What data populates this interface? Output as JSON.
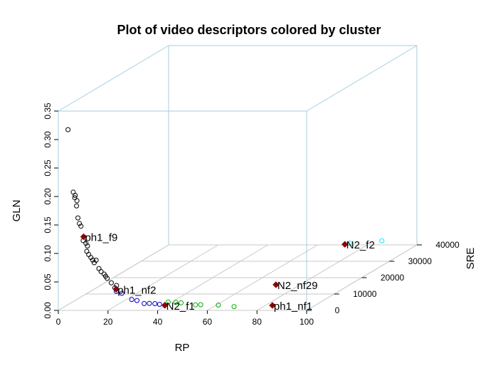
{
  "chart_data": {
    "type": "scatter",
    "title": "Plot of video descriptors colored by cluster",
    "xlabel": "RP",
    "ylabel": "GLN",
    "zlabel": "SRE",
    "x_ticks": [
      "0",
      "20",
      "40",
      "60",
      "80",
      "100"
    ],
    "y_ticks": [
      "0.00",
      "0.05",
      "0.10",
      "0.15",
      "0.20",
      "0.25",
      "0.30",
      "0.35"
    ],
    "z_ticks": [
      "0",
      "10000",
      "20000",
      "30000",
      "40000"
    ],
    "xlim": [
      0,
      100
    ],
    "ylim": [
      0,
      0.35
    ],
    "zlim": [
      0,
      40000
    ],
    "box_color": "#a6cee3",
    "grid": true,
    "series": [
      {
        "color": "#000000",
        "points": [
          {
            "x": 3,
            "z": 800,
            "y": 0.315
          },
          {
            "x": 5,
            "z": 900,
            "y": 0.205
          },
          {
            "x": 6,
            "z": 700,
            "y": 0.2
          },
          {
            "x": 5.5,
            "z": 1000,
            "y": 0.195
          },
          {
            "x": 6.5,
            "z": 900,
            "y": 0.19
          },
          {
            "x": 6,
            "z": 1200,
            "y": 0.18
          },
          {
            "x": 7,
            "z": 800,
            "y": 0.16
          },
          {
            "x": 7.5,
            "z": 900,
            "y": 0.15
          },
          {
            "x": 8,
            "z": 1000,
            "y": 0.145
          },
          {
            "x": 9,
            "z": 900,
            "y": 0.12
          },
          {
            "x": 10,
            "z": 1000,
            "y": 0.115
          },
          {
            "x": 10.5,
            "z": 1100,
            "y": 0.11
          },
          {
            "x": 10,
            "z": 1300,
            "y": 0.1
          },
          {
            "x": 11,
            "z": 1100,
            "y": 0.095
          },
          {
            "x": 12,
            "z": 1000,
            "y": 0.09
          },
          {
            "x": 12.5,
            "z": 1200,
            "y": 0.085
          },
          {
            "x": 14,
            "z": 1100,
            "y": 0.085
          },
          {
            "x": 13,
            "z": 1300,
            "y": 0.08
          },
          {
            "x": 15,
            "z": 1200,
            "y": 0.07
          },
          {
            "x": 16,
            "z": 1100,
            "y": 0.065
          },
          {
            "x": 17,
            "z": 1300,
            "y": 0.06
          },
          {
            "x": 17.5,
            "z": 1400,
            "y": 0.056
          },
          {
            "x": 18,
            "z": 1500,
            "y": 0.052
          },
          {
            "x": 20,
            "z": 1200,
            "y": 0.045
          },
          {
            "x": 22,
            "z": 1300,
            "y": 0.04
          },
          {
            "x": 21,
            "z": 1600,
            "y": 0.035
          }
        ]
      },
      {
        "color": "#0000cd",
        "points": [
          {
            "x": 22,
            "z": 1200,
            "y": 0.03
          },
          {
            "x": 24,
            "z": 1400,
            "y": 0.026
          },
          {
            "x": 28,
            "z": 1400,
            "y": 0.015
          },
          {
            "x": 30,
            "z": 1500,
            "y": 0.013
          },
          {
            "x": 33,
            "z": 1400,
            "y": 0.008
          },
          {
            "x": 35,
            "z": 1500,
            "y": 0.008
          },
          {
            "x": 37,
            "z": 1700,
            "y": 0.007
          },
          {
            "x": 39,
            "z": 1600,
            "y": 0.006
          }
        ]
      },
      {
        "color": "#00b000",
        "points": [
          {
            "x": 42,
            "z": 2000,
            "y": 0.009
          },
          {
            "x": 45,
            "z": 2100,
            "y": 0.008
          },
          {
            "x": 47,
            "z": 2200,
            "y": 0.007
          },
          {
            "x": 53,
            "z": 2000,
            "y": 0.004
          },
          {
            "x": 55,
            "z": 2100,
            "y": 0.004
          },
          {
            "x": 62,
            "z": 2200,
            "y": 0.003
          },
          {
            "x": 69,
            "z": 1600,
            "y": 0.002
          }
        ]
      },
      {
        "color": "#00e5ff",
        "points": [
          {
            "x": 73,
            "z": 40000,
            "y": 0.003
          },
          {
            "x": 87,
            "z": 39000,
            "y": 0.01
          }
        ]
      },
      {
        "color": "#8b0000",
        "filled": true,
        "points": [
          {
            "x": 8.5,
            "z": 1500,
            "y": 0.125,
            "label": "ph1_f9"
          },
          {
            "x": 20.5,
            "z": 2500,
            "y": 0.03,
            "label": "ph1_nf2"
          },
          {
            "x": 41,
            "z": 1700,
            "y": 0.004,
            "label": "N2_f1"
          },
          {
            "x": 84,
            "z": 2000,
            "y": 0.003,
            "label": "ph1_nf1"
          },
          {
            "x": 71,
            "z": 15000,
            "y": 0.002,
            "label": "N2_nf29"
          },
          {
            "x": 71,
            "z": 40000,
            "y": 0.001,
            "label": "N2_f2"
          }
        ]
      }
    ]
  }
}
